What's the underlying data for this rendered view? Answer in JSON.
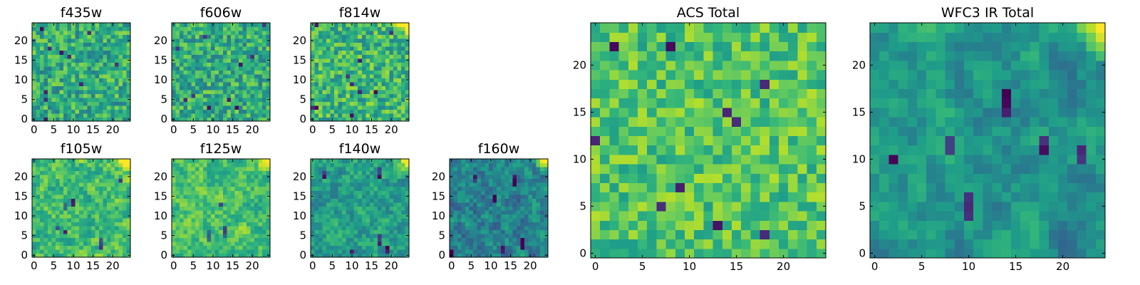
{
  "chart_data": [
    {
      "type": "heatmap",
      "title": "f435w",
      "xticks": [
        0,
        5,
        10,
        15,
        20
      ],
      "yticks": [
        0,
        5,
        10,
        15,
        20
      ],
      "xlim": [
        -0.5,
        24.5
      ],
      "ylim": [
        -0.5,
        24.5
      ],
      "grid_size": [
        25,
        25
      ],
      "colormap": "viridis",
      "value_range": [
        0,
        1
      ],
      "seed": 11,
      "mean": 0.62,
      "spread": 0.42,
      "smooth": 0,
      "bright_corner": false,
      "dark_blobs": 0
    },
    {
      "type": "heatmap",
      "title": "f606w",
      "xticks": [
        0,
        5,
        10,
        15,
        20
      ],
      "yticks": [
        0,
        5,
        10,
        15,
        20
      ],
      "xlim": [
        -0.5,
        24.5
      ],
      "ylim": [
        -0.5,
        24.5
      ],
      "grid_size": [
        25,
        25
      ],
      "colormap": "viridis",
      "value_range": [
        0,
        1
      ],
      "seed": 23,
      "mean": 0.62,
      "spread": 0.42,
      "smooth": 0,
      "bright_corner": false,
      "dark_blobs": 0
    },
    {
      "type": "heatmap",
      "title": "f814w",
      "xticks": [
        0,
        5,
        10,
        15,
        20
      ],
      "yticks": [
        0,
        5,
        10,
        15,
        20
      ],
      "xlim": [
        -0.5,
        24.5
      ],
      "ylim": [
        -0.5,
        24.5
      ],
      "grid_size": [
        25,
        25
      ],
      "colormap": "viridis",
      "value_range": [
        0,
        1
      ],
      "seed": 37,
      "mean": 0.66,
      "spread": 0.42,
      "smooth": 0,
      "bright_corner": true,
      "dark_blobs": 0
    },
    {
      "type": "heatmap",
      "title": "f105w",
      "xticks": [
        0,
        5,
        10,
        15,
        20
      ],
      "yticks": [
        0,
        5,
        10,
        15,
        20
      ],
      "xlim": [
        -0.5,
        24.5
      ],
      "ylim": [
        -0.5,
        24.5
      ],
      "grid_size": [
        25,
        25
      ],
      "colormap": "viridis",
      "value_range": [
        0,
        1
      ],
      "seed": 41,
      "mean": 0.68,
      "spread": 0.34,
      "smooth": 1,
      "bright_corner": true,
      "dark_blobs": 6
    },
    {
      "type": "heatmap",
      "title": "f125w",
      "xticks": [
        0,
        5,
        10,
        15,
        20
      ],
      "yticks": [
        0,
        5,
        10,
        15,
        20
      ],
      "xlim": [
        -0.5,
        24.5
      ],
      "ylim": [
        -0.5,
        24.5
      ],
      "grid_size": [
        25,
        25
      ],
      "colormap": "viridis",
      "value_range": [
        0,
        1
      ],
      "seed": 53,
      "mean": 0.7,
      "spread": 0.3,
      "smooth": 1,
      "bright_corner": true,
      "dark_blobs": 3
    },
    {
      "type": "heatmap",
      "title": "f140w",
      "xticks": [
        0,
        5,
        10,
        15,
        20
      ],
      "yticks": [
        0,
        5,
        10,
        15,
        20
      ],
      "xlim": [
        -0.5,
        24.5
      ],
      "ylim": [
        -0.5,
        24.5
      ],
      "grid_size": [
        25,
        25
      ],
      "colormap": "viridis",
      "value_range": [
        0,
        1
      ],
      "seed": 67,
      "mean": 0.56,
      "spread": 0.3,
      "smooth": 1,
      "bright_corner": true,
      "dark_blobs": 5
    },
    {
      "type": "heatmap",
      "title": "f160w",
      "xticks": [
        0,
        5,
        10,
        15,
        20
      ],
      "yticks": [
        0,
        5,
        10,
        15,
        20
      ],
      "xlim": [
        -0.5,
        24.5
      ],
      "ylim": [
        -0.5,
        24.5
      ],
      "grid_size": [
        25,
        25
      ],
      "colormap": "viridis",
      "value_range": [
        0,
        1
      ],
      "seed": 79,
      "mean": 0.45,
      "spread": 0.32,
      "smooth": 1,
      "bright_corner": true,
      "dark_blobs": 6
    },
    {
      "type": "heatmap",
      "title": "ACS Total",
      "xticks": [
        0,
        5,
        10,
        15,
        20
      ],
      "yticks": [
        0,
        5,
        10,
        15,
        20
      ],
      "xlim": [
        -0.5,
        24.5
      ],
      "ylim": [
        -0.5,
        24.5
      ],
      "grid_size": [
        25,
        25
      ],
      "colormap": "viridis",
      "value_range": [
        0,
        1
      ],
      "seed": 97,
      "mean": 0.72,
      "spread": 0.34,
      "smooth": 0,
      "bright_corner": false,
      "dark_blobs": 0
    },
    {
      "type": "heatmap",
      "title": "WFC3 IR Total",
      "xticks": [
        0,
        5,
        10,
        15,
        20
      ],
      "yticks": [
        0,
        5,
        10,
        15,
        20
      ],
      "xlim": [
        -0.5,
        24.5
      ],
      "ylim": [
        -0.5,
        24.5
      ],
      "grid_size": [
        25,
        25
      ],
      "colormap": "viridis",
      "value_range": [
        0,
        1
      ],
      "seed": 131,
      "mean": 0.52,
      "spread": 0.28,
      "smooth": 2,
      "bright_corner": true,
      "dark_blobs": 7
    }
  ]
}
